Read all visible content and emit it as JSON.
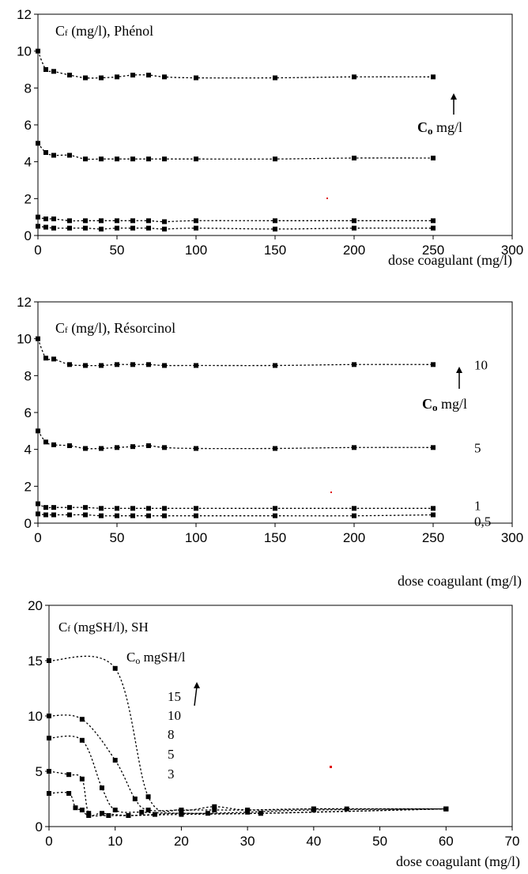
{
  "chart_data": [
    {
      "type": "line",
      "title": "Cf (mg/l), Phénol",
      "title_main": "C",
      "title_sub": "f",
      "title_rest": " (mg/l), Phénol",
      "xlabel": "dose coagulant (mg/l)",
      "ylabel": "",
      "xlim": [
        0,
        300
      ],
      "ylim": [
        0,
        12
      ],
      "xticks": [
        "0",
        "50",
        "100",
        "150",
        "200",
        "250",
        "300"
      ],
      "yticks": [
        "0",
        "2",
        "4",
        "6",
        "8",
        "10",
        "12"
      ],
      "grid": false,
      "annotations": {
        "arrow_label_main": "C",
        "arrow_label_sub": "o",
        "arrow_label_rest": " mg/l",
        "series_labels": []
      },
      "series": [
        {
          "values": [
            [
              0,
              10.0
            ],
            [
              5,
              9.0
            ],
            [
              10,
              8.9
            ],
            [
              20,
              8.7
            ],
            [
              30,
              8.55
            ],
            [
              40,
              8.55
            ],
            [
              50,
              8.6
            ],
            [
              60,
              8.7
            ],
            [
              70,
              8.7
            ],
            [
              80,
              8.6
            ],
            [
              100,
              8.55
            ],
            [
              150,
              8.55
            ],
            [
              200,
              8.6
            ],
            [
              250,
              8.6
            ]
          ]
        },
        {
          "values": [
            [
              0,
              5.0
            ],
            [
              5,
              4.5
            ],
            [
              10,
              4.35
            ],
            [
              20,
              4.35
            ],
            [
              30,
              4.15
            ],
            [
              40,
              4.15
            ],
            [
              50,
              4.15
            ],
            [
              60,
              4.15
            ],
            [
              70,
              4.15
            ],
            [
              80,
              4.15
            ],
            [
              100,
              4.15
            ],
            [
              150,
              4.15
            ],
            [
              200,
              4.2
            ],
            [
              250,
              4.2
            ]
          ]
        },
        {
          "values": [
            [
              0,
              1.0
            ],
            [
              5,
              0.9
            ],
            [
              10,
              0.9
            ],
            [
              20,
              0.8
            ],
            [
              30,
              0.8
            ],
            [
              40,
              0.8
            ],
            [
              50,
              0.8
            ],
            [
              60,
              0.8
            ],
            [
              70,
              0.8
            ],
            [
              80,
              0.75
            ],
            [
              100,
              0.8
            ],
            [
              150,
              0.8
            ],
            [
              200,
              0.8
            ],
            [
              250,
              0.8
            ]
          ]
        },
        {
          "values": [
            [
              0,
              0.5
            ],
            [
              5,
              0.45
            ],
            [
              10,
              0.4
            ],
            [
              20,
              0.4
            ],
            [
              30,
              0.4
            ],
            [
              40,
              0.35
            ],
            [
              50,
              0.4
            ],
            [
              60,
              0.4
            ],
            [
              70,
              0.4
            ],
            [
              80,
              0.35
            ],
            [
              100,
              0.4
            ],
            [
              150,
              0.35
            ],
            [
              200,
              0.4
            ],
            [
              250,
              0.4
            ]
          ]
        }
      ]
    },
    {
      "type": "line",
      "title": "Cf (mg/l), Résorcinol",
      "title_main": "C",
      "title_sub": "f",
      "title_rest": " (mg/l), Résorcinol",
      "xlabel": "dose coagulant (mg/l)",
      "ylabel": "",
      "xlim": [
        0,
        300
      ],
      "ylim": [
        0,
        12
      ],
      "xticks": [
        "0",
        "50",
        "100",
        "150",
        "200",
        "250",
        "300"
      ],
      "yticks": [
        "0",
        "2",
        "4",
        "6",
        "8",
        "10",
        "12"
      ],
      "grid": false,
      "annotations": {
        "arrow_label_main": "C",
        "arrow_label_sub": "o",
        "arrow_label_rest": " mg/l",
        "series_labels": [
          "10",
          "5",
          "1",
          "0,5"
        ]
      },
      "series": [
        {
          "values": [
            [
              0,
              10.0
            ],
            [
              5,
              8.95
            ],
            [
              10,
              8.9
            ],
            [
              20,
              8.6
            ],
            [
              30,
              8.55
            ],
            [
              40,
              8.55
            ],
            [
              50,
              8.6
            ],
            [
              60,
              8.6
            ],
            [
              70,
              8.6
            ],
            [
              80,
              8.55
            ],
            [
              100,
              8.55
            ],
            [
              150,
              8.55
            ],
            [
              200,
              8.6
            ],
            [
              250,
              8.6
            ]
          ]
        },
        {
          "values": [
            [
              0,
              5.0
            ],
            [
              5,
              4.4
            ],
            [
              10,
              4.25
            ],
            [
              20,
              4.2
            ],
            [
              30,
              4.05
            ],
            [
              40,
              4.05
            ],
            [
              50,
              4.1
            ],
            [
              60,
              4.15
            ],
            [
              70,
              4.2
            ],
            [
              80,
              4.1
            ],
            [
              100,
              4.05
            ],
            [
              150,
              4.05
            ],
            [
              200,
              4.1
            ],
            [
              250,
              4.1
            ]
          ]
        },
        {
          "values": [
            [
              0,
              1.05
            ],
            [
              5,
              0.85
            ],
            [
              10,
              0.85
            ],
            [
              20,
              0.85
            ],
            [
              30,
              0.85
            ],
            [
              40,
              0.8
            ],
            [
              50,
              0.8
            ],
            [
              60,
              0.8
            ],
            [
              70,
              0.8
            ],
            [
              80,
              0.8
            ],
            [
              100,
              0.8
            ],
            [
              150,
              0.8
            ],
            [
              200,
              0.8
            ],
            [
              250,
              0.8
            ]
          ]
        },
        {
          "values": [
            [
              0,
              0.5
            ],
            [
              5,
              0.45
            ],
            [
              10,
              0.45
            ],
            [
              20,
              0.45
            ],
            [
              30,
              0.45
            ],
            [
              40,
              0.4
            ],
            [
              50,
              0.4
            ],
            [
              60,
              0.4
            ],
            [
              70,
              0.4
            ],
            [
              80,
              0.4
            ],
            [
              100,
              0.4
            ],
            [
              150,
              0.4
            ],
            [
              200,
              0.4
            ],
            [
              250,
              0.45
            ]
          ]
        }
      ]
    },
    {
      "type": "line",
      "title": "Cf (mgSH/l), SH",
      "title_main": "C",
      "title_sub": "f",
      "title_rest": " (mgSH/l), SH",
      "xlabel": "dose coagulant (mg/l)",
      "ylabel": "",
      "xlim": [
        0,
        70
      ],
      "ylim": [
        0,
        20
      ],
      "xticks": [
        "0",
        "10",
        "20",
        "30",
        "40",
        "50",
        "60",
        "70"
      ],
      "yticks": [
        "0",
        "5",
        "10",
        "15",
        "20"
      ],
      "grid": false,
      "annotations": {
        "arrow_label_main": "C",
        "arrow_label_sub": "o",
        "arrow_label_rest": " mgSH/l",
        "series_labels": [
          "15",
          "10",
          "8",
          "5",
          "3"
        ]
      },
      "series": [
        {
          "values": [
            [
              0,
              15
            ],
            [
              10,
              14.3
            ],
            [
              15,
              2.7
            ],
            [
              20,
              1.5
            ],
            [
              25,
              1.8
            ],
            [
              30,
              1.5
            ],
            [
              40,
              1.6
            ],
            [
              45,
              1.6
            ],
            [
              60,
              1.6
            ]
          ]
        },
        {
          "values": [
            [
              0,
              10
            ],
            [
              5,
              9.7
            ],
            [
              10,
              6.0
            ],
            [
              13,
              2.5
            ],
            [
              15,
              1.5
            ],
            [
              20,
              1.5
            ],
            [
              25,
              1.5
            ],
            [
              30,
              1.5
            ],
            [
              40,
              1.6
            ],
            [
              60,
              1.6
            ]
          ]
        },
        {
          "values": [
            [
              0,
              8
            ],
            [
              5,
              7.8
            ],
            [
              8,
              3.5
            ],
            [
              10,
              1.5
            ],
            [
              14,
              1.3
            ],
            [
              20,
              1.2
            ],
            [
              24,
              1.2
            ],
            [
              30,
              1.3
            ],
            [
              40,
              1.5
            ],
            [
              60,
              1.6
            ]
          ]
        },
        {
          "values": [
            [
              0,
              5
            ],
            [
              3,
              4.7
            ],
            [
              5,
              4.3
            ],
            [
              6,
              1.2
            ],
            [
              8,
              1.2
            ],
            [
              12,
              1.0
            ],
            [
              16,
              1.1
            ],
            [
              20,
              1.2
            ],
            [
              32,
              1.2
            ],
            [
              60,
              1.6
            ]
          ]
        },
        {
          "values": [
            [
              0,
              3
            ],
            [
              3,
              3.0
            ],
            [
              4,
              1.7
            ],
            [
              5,
              1.5
            ],
            [
              6,
              1.0
            ],
            [
              9,
              1.0
            ],
            [
              12,
              1.0
            ],
            [
              20,
              1.1
            ],
            [
              32,
              1.2
            ],
            [
              60,
              1.6
            ]
          ]
        }
      ]
    }
  ]
}
